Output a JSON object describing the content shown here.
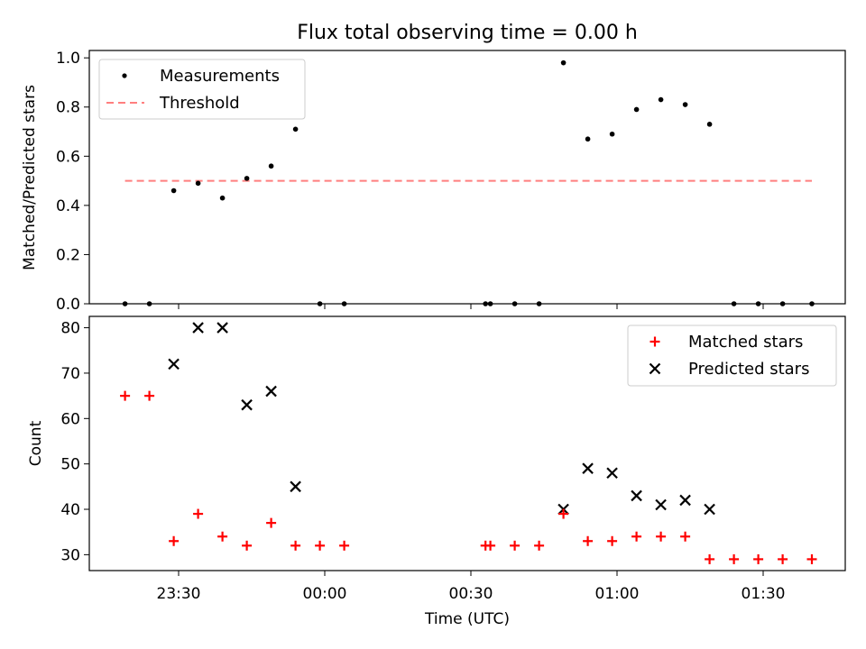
{
  "title": "Flux total observing time = 0.00 h",
  "colors": {
    "measurement": "#000000",
    "threshold": "#ff7f7f",
    "matched": "#ff0000",
    "predicted": "#000000"
  },
  "chart_data": [
    {
      "type": "scatter",
      "ylabel": "Matched/Predicted stars",
      "ylim": [
        0,
        1.03
      ],
      "yticks": [
        "0.0",
        "0.2",
        "0.4",
        "0.6",
        "0.8",
        "1.0"
      ],
      "legend_position": "top-left",
      "legend": {
        "measurements": "Measurements",
        "threshold": "Threshold"
      },
      "threshold": {
        "value": 0.5,
        "x_start": "23:19",
        "x_end": "01:40"
      },
      "measurements": [
        {
          "x": "23:19",
          "y": 0.0
        },
        {
          "x": "23:24",
          "y": 0.0
        },
        {
          "x": "23:29",
          "y": 0.46
        },
        {
          "x": "23:34",
          "y": 0.49
        },
        {
          "x": "23:39",
          "y": 0.43
        },
        {
          "x": "23:44",
          "y": 0.51
        },
        {
          "x": "23:49",
          "y": 0.56
        },
        {
          "x": "23:54",
          "y": 0.71
        },
        {
          "x": "23:59",
          "y": 0.0
        },
        {
          "x": "00:04",
          "y": 0.0
        },
        {
          "x": "00:33",
          "y": 0.0
        },
        {
          "x": "00:34",
          "y": 0.0
        },
        {
          "x": "00:39",
          "y": 0.0
        },
        {
          "x": "00:44",
          "y": 0.0
        },
        {
          "x": "00:49",
          "y": 0.98
        },
        {
          "x": "00:54",
          "y": 0.67
        },
        {
          "x": "00:59",
          "y": 0.69
        },
        {
          "x": "01:04",
          "y": 0.79
        },
        {
          "x": "01:09",
          "y": 0.83
        },
        {
          "x": "01:14",
          "y": 0.81
        },
        {
          "x": "01:19",
          "y": 0.73
        },
        {
          "x": "01:24",
          "y": 0.0
        },
        {
          "x": "01:29",
          "y": 0.0
        },
        {
          "x": "01:34",
          "y": 0.0
        },
        {
          "x": "01:40",
          "y": 0.0
        }
      ]
    },
    {
      "type": "scatter",
      "xlabel": "Time (UTC)",
      "ylabel": "Count",
      "ylim": [
        26.5,
        82.5
      ],
      "yticks": [
        "30",
        "40",
        "50",
        "60",
        "70",
        "80"
      ],
      "xticks": [
        "23:30",
        "00:00",
        "00:30",
        "01:00",
        "01:30"
      ],
      "legend_position": "top-right",
      "series": [
        {
          "name": "Matched stars",
          "marker": "plus",
          "points": [
            {
              "x": "23:19",
              "y": 65
            },
            {
              "x": "23:24",
              "y": 65
            },
            {
              "x": "23:29",
              "y": 33
            },
            {
              "x": "23:34",
              "y": 39
            },
            {
              "x": "23:39",
              "y": 34
            },
            {
              "x": "23:44",
              "y": 32
            },
            {
              "x": "23:49",
              "y": 37
            },
            {
              "x": "23:54",
              "y": 32
            },
            {
              "x": "23:59",
              "y": 32
            },
            {
              "x": "00:04",
              "y": 32
            },
            {
              "x": "00:33",
              "y": 32
            },
            {
              "x": "00:34",
              "y": 32
            },
            {
              "x": "00:39",
              "y": 32
            },
            {
              "x": "00:44",
              "y": 32
            },
            {
              "x": "00:49",
              "y": 39
            },
            {
              "x": "00:54",
              "y": 33
            },
            {
              "x": "00:59",
              "y": 33
            },
            {
              "x": "01:04",
              "y": 34
            },
            {
              "x": "01:09",
              "y": 34
            },
            {
              "x": "01:14",
              "y": 34
            },
            {
              "x": "01:19",
              "y": 29
            },
            {
              "x": "01:24",
              "y": 29
            },
            {
              "x": "01:29",
              "y": 29
            },
            {
              "x": "01:34",
              "y": 29
            },
            {
              "x": "01:40",
              "y": 29
            }
          ]
        },
        {
          "name": "Predicted stars",
          "marker": "x",
          "points": [
            {
              "x": "23:29",
              "y": 72
            },
            {
              "x": "23:34",
              "y": 80
            },
            {
              "x": "23:39",
              "y": 80
            },
            {
              "x": "23:44",
              "y": 63
            },
            {
              "x": "23:49",
              "y": 66
            },
            {
              "x": "23:54",
              "y": 45
            },
            {
              "x": "00:49",
              "y": 40
            },
            {
              "x": "00:54",
              "y": 49
            },
            {
              "x": "00:59",
              "y": 48
            },
            {
              "x": "01:04",
              "y": 43
            },
            {
              "x": "01:09",
              "y": 41
            },
            {
              "x": "01:14",
              "y": 42
            },
            {
              "x": "01:19",
              "y": 40
            }
          ]
        }
      ]
    }
  ]
}
